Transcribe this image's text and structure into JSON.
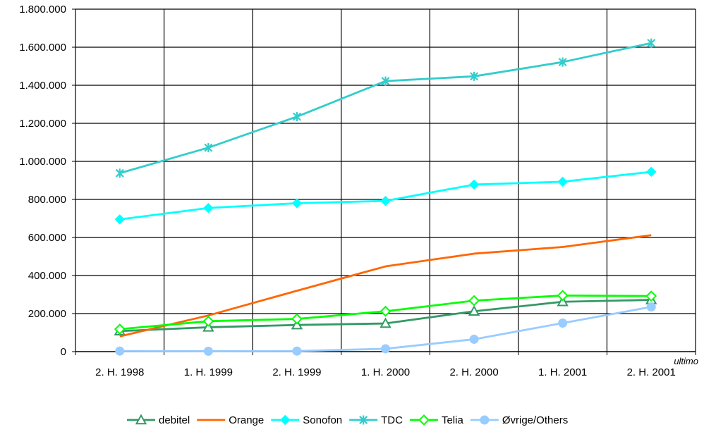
{
  "chart_data": {
    "type": "line",
    "categories": [
      "2. H. 1998",
      "1. H. 1999",
      "2. H. 1999",
      "1. H. 2000",
      "2. H. 2000",
      "1. H. 2001",
      "2. H. 2001"
    ],
    "y_ticks": [
      "0",
      "200.000",
      "400.000",
      "600.000",
      "800.000",
      "1.000.000",
      "1.200.000",
      "1.400.000",
      "1.600.000",
      "1.800.000"
    ],
    "ylim": [
      0,
      1800000
    ],
    "x_note": "ultimo",
    "grid": true,
    "legend_position": "bottom",
    "series": [
      {
        "name": "debitel",
        "color": "#339966",
        "marker": "triangle",
        "values": [
          108000,
          128000,
          140000,
          148000,
          212000,
          262000,
          272000
        ]
      },
      {
        "name": "Orange",
        "color": "#ff6600",
        "marker": "none",
        "values": [
          80000,
          190000,
          320000,
          448000,
          515000,
          550000,
          612000
        ]
      },
      {
        "name": "Sonofon",
        "color": "#00ffff",
        "marker": "diamond-filled",
        "values": [
          695000,
          755000,
          780000,
          792000,
          878000,
          893000,
          945000
        ]
      },
      {
        "name": "TDC",
        "color": "#33cccc",
        "marker": "asterisk",
        "values": [
          938000,
          1072000,
          1235000,
          1422000,
          1447000,
          1522000,
          1622000
        ]
      },
      {
        "name": "Telia",
        "color": "#00ff00",
        "marker": "diamond-open",
        "values": [
          118000,
          160000,
          172000,
          212000,
          268000,
          295000,
          292000
        ]
      },
      {
        "name": "Øvrige/Others",
        "color": "#99ccff",
        "marker": "circle",
        "values": [
          3000,
          2000,
          3000,
          15000,
          65000,
          150000,
          235000
        ]
      }
    ]
  }
}
